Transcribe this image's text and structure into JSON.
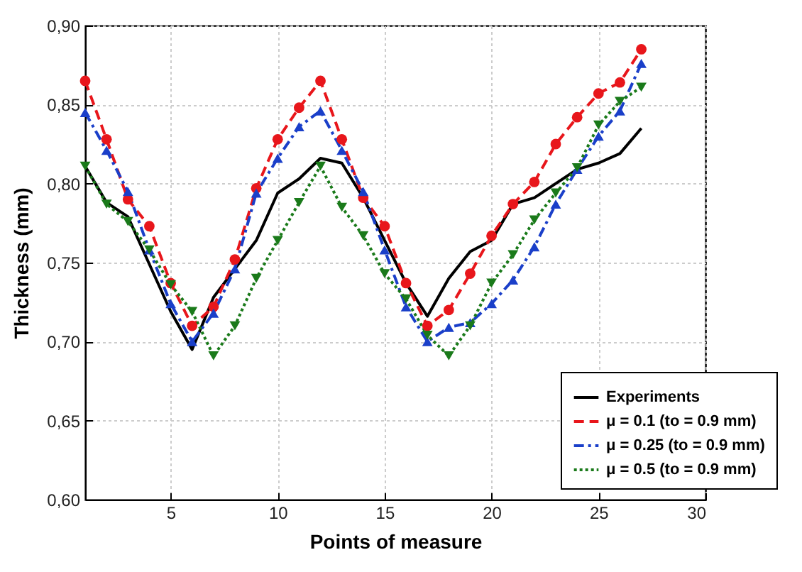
{
  "chart_data": {
    "type": "line",
    "xlabel": "Points of measure",
    "ylabel": "Thickness (mm)",
    "x": [
      1,
      2,
      3,
      4,
      5,
      6,
      7,
      8,
      9,
      10,
      11,
      12,
      13,
      14,
      15,
      16,
      17,
      18,
      19,
      20,
      21,
      22,
      23,
      24,
      25,
      26,
      27
    ],
    "xlim": [
      1,
      30
    ],
    "xticks": [
      5,
      10,
      15,
      20,
      25,
      30
    ],
    "ylim": [
      0.6,
      0.9
    ],
    "yticks": [
      {
        "value": 0.6,
        "label": "0,60"
      },
      {
        "value": 0.65,
        "label": "0,65"
      },
      {
        "value": 0.7,
        "label": "0,70"
      },
      {
        "value": 0.75,
        "label": "0,75"
      },
      {
        "value": 0.8,
        "label": "0,80"
      },
      {
        "value": 0.85,
        "label": "0,85"
      },
      {
        "value": 0.9,
        "label": "0,90"
      }
    ],
    "grid": true,
    "legend": "bottom right",
    "series": [
      {
        "name": "Experiments",
        "color": "#000000",
        "marker": "none",
        "line_style": "solid",
        "values": [
          0.811,
          0.788,
          0.779,
          0.749,
          0.719,
          0.695,
          0.728,
          0.746,
          0.764,
          0.794,
          0.803,
          0.816,
          0.813,
          0.791,
          0.764,
          0.737,
          0.716,
          0.74,
          0.757,
          0.764,
          0.787,
          0.791,
          0.8,
          0.809,
          0.813,
          0.819,
          0.835
        ]
      },
      {
        "name": "μ = 0.1 (to = 0.9 mm)",
        "color": "#e8161b",
        "marker": "circle",
        "line_style": "dashed",
        "values": [
          0.865,
          0.828,
          0.79,
          0.773,
          0.737,
          0.71,
          0.722,
          0.752,
          0.797,
          0.828,
          0.848,
          0.865,
          0.828,
          0.791,
          0.773,
          0.737,
          0.71,
          0.72,
          0.743,
          0.767,
          0.787,
          0.801,
          0.825,
          0.842,
          0.857,
          0.864,
          0.885
        ]
      },
      {
        "name": "μ = 0.25 (to = 0.9 mm)",
        "color": "#1a3fc9",
        "marker": "triangle",
        "line_style": "dashdot",
        "values": [
          0.845,
          0.821,
          0.795,
          0.758,
          0.724,
          0.7,
          0.718,
          0.746,
          0.794,
          0.816,
          0.836,
          0.846,
          0.821,
          0.795,
          0.758,
          0.722,
          0.7,
          0.709,
          0.712,
          0.724,
          0.739,
          0.76,
          0.787,
          0.809,
          0.83,
          0.846,
          0.876
        ]
      },
      {
        "name": "μ = 0.5 (to = 0.9 mm)",
        "color": "#1a7a1a",
        "marker": "triangle-down",
        "line_style": "dotted",
        "values": [
          0.811,
          0.787,
          0.776,
          0.758,
          0.736,
          0.719,
          0.691,
          0.71,
          0.74,
          0.764,
          0.788,
          0.811,
          0.785,
          0.767,
          0.743,
          0.727,
          0.704,
          0.691,
          0.71,
          0.737,
          0.755,
          0.777,
          0.794,
          0.81,
          0.837,
          0.852,
          0.861
        ]
      }
    ]
  }
}
